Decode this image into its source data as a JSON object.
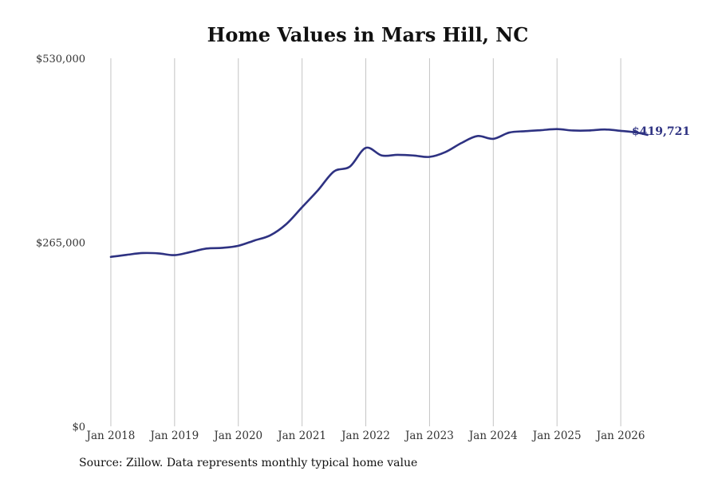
{
  "chart_data": {
    "type": "line",
    "title": "Home Values in Mars Hill, NC",
    "source": "Source: Zillow. Data represents monthly typical home value",
    "y_tick_labels": [
      "$0",
      "$265,000",
      "$530,000"
    ],
    "y_ticks": [
      0,
      265000,
      530000
    ],
    "ylim": [
      0,
      530000
    ],
    "x_tick_labels": [
      "Jan 2018",
      "Jan 2019",
      "Jan 2020",
      "Jan 2021",
      "Jan 2022",
      "Jan 2023",
      "Jan 2024",
      "Jan 2025",
      "Jan 2026"
    ],
    "x_ticks": [
      2018.0,
      2019.0,
      2020.0,
      2021.0,
      2022.0,
      2023.0,
      2024.0,
      2025.0,
      2026.0
    ],
    "xlim": [
      2017.6,
      2026.9
    ],
    "grid": "vertical",
    "line_color": "#2e3282",
    "end_label": "$419,721",
    "series": [
      {
        "x": [
          2018.0,
          2018.25,
          2018.5,
          2018.75,
          2019.0,
          2019.25,
          2019.5,
          2019.75,
          2020.0,
          2020.25,
          2020.5,
          2020.75,
          2021.0,
          2021.25,
          2021.5,
          2021.75,
          2022.0,
          2022.25,
          2022.5,
          2022.75,
          2023.0,
          2023.25,
          2023.5,
          2023.75,
          2024.0,
          2024.25,
          2024.5,
          2024.75,
          2025.0,
          2025.25,
          2025.5,
          2025.75,
          2026.0,
          2026.25,
          2026.42
        ],
        "y": [
          244000,
          247000,
          249500,
          249000,
          246500,
          251000,
          256000,
          257000,
          260000,
          267500,
          275000,
          291000,
          315500,
          340000,
          367000,
          374000,
          401000,
          390000,
          391000,
          390000,
          388000,
          395000,
          408000,
          418000,
          414000,
          423000,
          425000,
          426500,
          428000,
          426000,
          426000,
          427500,
          425500,
          423000,
          419721
        ]
      }
    ]
  }
}
